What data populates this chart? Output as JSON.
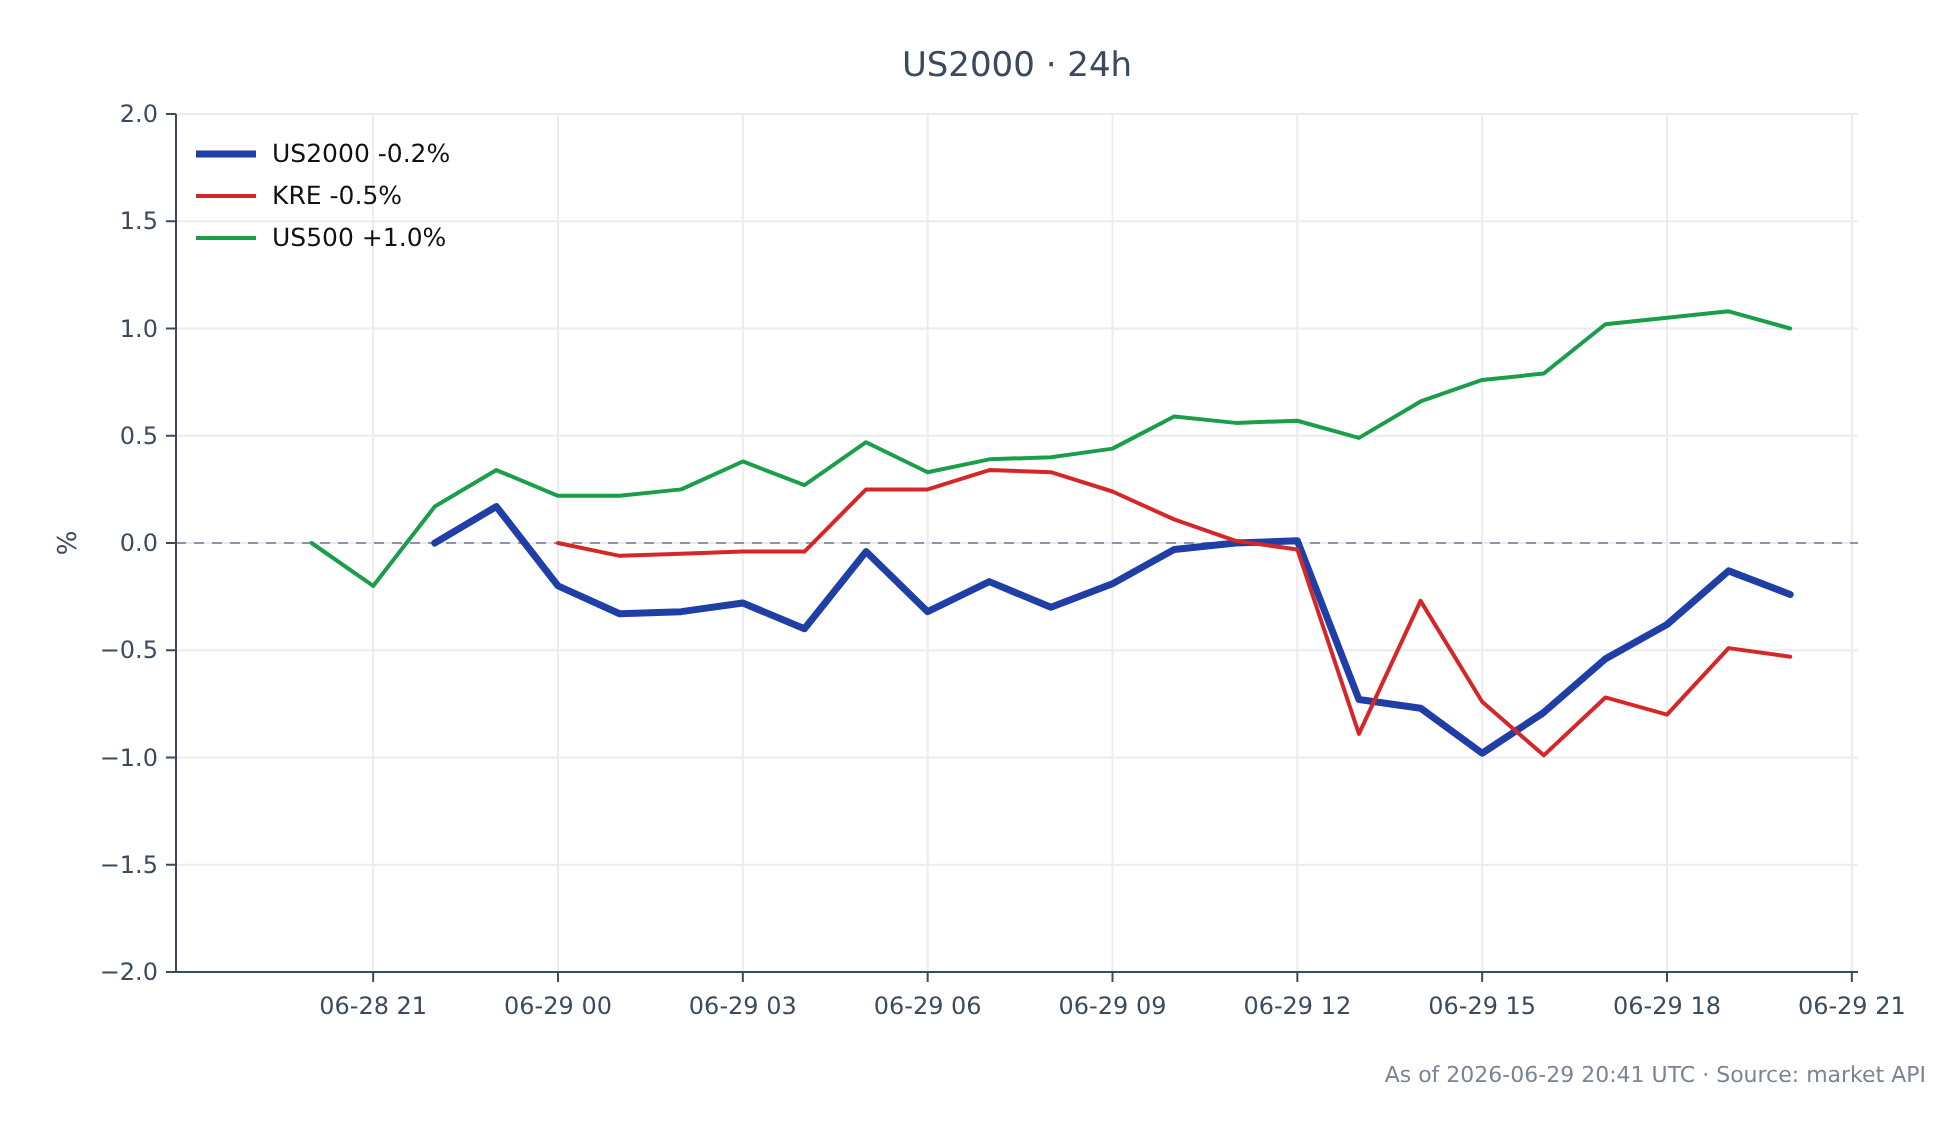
{
  "chart_data": {
    "type": "line",
    "title": "US2000 · 24h",
    "ylabel": "%",
    "annotations": [
      "As of 2026-06-29 20:41 UTC · Source: market API"
    ],
    "xlim": [
      "2026-06-28T17:48",
      "2026-06-29T21:06"
    ],
    "xticks": [
      {
        "value": "2026-06-28T21:00",
        "label": "06-28 21"
      },
      {
        "value": "2026-06-29T00:00",
        "label": "06-29 00"
      },
      {
        "value": "2026-06-29T03:00",
        "label": "06-29 03"
      },
      {
        "value": "2026-06-29T06:00",
        "label": "06-29 06"
      },
      {
        "value": "2026-06-29T09:00",
        "label": "06-29 09"
      },
      {
        "value": "2026-06-29T12:00",
        "label": "06-29 12"
      },
      {
        "value": "2026-06-29T15:00",
        "label": "06-29 15"
      },
      {
        "value": "2026-06-29T18:00",
        "label": "06-29 18"
      },
      {
        "value": "2026-06-29T21:00",
        "label": "06-29 21"
      }
    ],
    "ylim": [
      -2,
      2
    ],
    "yticks": [
      {
        "value": -2,
        "label": "−2.0"
      },
      {
        "value": -1.5,
        "label": "−1.5"
      },
      {
        "value": -1,
        "label": "−1.0"
      },
      {
        "value": -0.5,
        "label": "−0.5"
      },
      {
        "value": 0,
        "label": "0.0"
      },
      {
        "value": 0.5,
        "label": "0.5"
      },
      {
        "value": 1,
        "label": "1.0"
      },
      {
        "value": 1.5,
        "label": "1.5"
      },
      {
        "value": 2,
        "label": "2.0"
      }
    ],
    "grid": true,
    "legend": "top left",
    "marker": "none",
    "line_style": "solid",
    "ref_lines": [
      {
        "axis": "y",
        "value": 0,
        "color": "#8a94b0",
        "line_style": "dashed"
      }
    ],
    "series": [
      {
        "name": "US2000 -0.2%",
        "color": "#1f3fa6",
        "x": [
          "2026-06-28T22:00",
          "2026-06-28T23:00",
          "2026-06-29T00:00",
          "2026-06-29T01:00",
          "2026-06-29T02:00",
          "2026-06-29T03:00",
          "2026-06-29T04:00",
          "2026-06-29T05:00",
          "2026-06-29T06:00",
          "2026-06-29T07:00",
          "2026-06-29T08:00",
          "2026-06-29T09:00",
          "2026-06-29T10:00",
          "2026-06-29T11:00",
          "2026-06-29T12:00",
          "2026-06-29T13:00",
          "2026-06-29T14:00",
          "2026-06-29T15:00",
          "2026-06-29T16:00",
          "2026-06-29T17:00",
          "2026-06-29T18:00",
          "2026-06-29T19:00",
          "2026-06-29T20:00"
        ],
        "values": [
          0,
          0.17,
          -0.2,
          -0.33,
          -0.32,
          -0.28,
          -0.4,
          -0.04,
          -0.32,
          -0.18,
          -0.3,
          -0.19,
          -0.03,
          0,
          0.01,
          -0.73,
          -0.77,
          -0.98,
          -0.79,
          -0.54,
          -0.38,
          -0.13,
          -0.24
        ]
      },
      {
        "name": "KRE -0.5%",
        "color": "#d62728",
        "x": [
          "2026-06-29T00:00",
          "2026-06-29T01:00",
          "2026-06-29T02:00",
          "2026-06-29T03:00",
          "2026-06-29T04:00",
          "2026-06-29T05:00",
          "2026-06-29T06:00",
          "2026-06-29T07:00",
          "2026-06-29T08:00",
          "2026-06-29T09:00",
          "2026-06-29T10:00",
          "2026-06-29T11:00",
          "2026-06-29T12:00",
          "2026-06-29T13:00",
          "2026-06-29T14:00",
          "2026-06-29T15:00",
          "2026-06-29T16:00",
          "2026-06-29T17:00",
          "2026-06-29T18:00",
          "2026-06-29T19:00",
          "2026-06-29T20:00"
        ],
        "values": [
          0,
          -0.06,
          -0.05,
          -0.04,
          -0.04,
          0.25,
          0.25,
          0.34,
          0.33,
          0.24,
          0.11,
          0.01,
          -0.03,
          -0.89,
          -0.27,
          -0.74,
          -0.99,
          -0.72,
          -0.8,
          -0.49,
          -0.53
        ]
      },
      {
        "name": "US500 +1.0%",
        "color": "#1a9e4a",
        "x": [
          "2026-06-28T20:00",
          "2026-06-28T21:00",
          "2026-06-28T22:00",
          "2026-06-28T23:00",
          "2026-06-29T00:00",
          "2026-06-29T01:00",
          "2026-06-29T02:00",
          "2026-06-29T03:00",
          "2026-06-29T04:00",
          "2026-06-29T05:00",
          "2026-06-29T06:00",
          "2026-06-29T07:00",
          "2026-06-29T08:00",
          "2026-06-29T09:00",
          "2026-06-29T10:00",
          "2026-06-29T11:00",
          "2026-06-29T12:00",
          "2026-06-29T13:00",
          "2026-06-29T14:00",
          "2026-06-29T15:00",
          "2026-06-29T16:00",
          "2026-06-29T17:00",
          "2026-06-29T18:00",
          "2026-06-29T19:00",
          "2026-06-29T20:00"
        ],
        "values": [
          0,
          -0.2,
          0.17,
          0.34,
          0.22,
          0.22,
          0.25,
          0.38,
          0.27,
          0.47,
          0.33,
          0.39,
          0.4,
          0.44,
          0.59,
          0.56,
          0.57,
          0.49,
          0.66,
          0.76,
          0.79,
          1.02,
          1.05,
          1.08,
          1
        ]
      }
    ]
  }
}
